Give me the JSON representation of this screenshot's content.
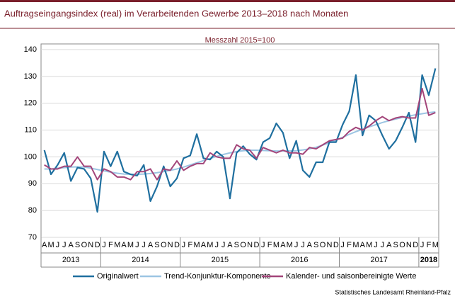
{
  "chart_data": {
    "type": "line",
    "title": "Auftragseingangsindex (real) im Verarbeitenden Gewerbe 2013–2018 nach Monaten",
    "subtitle": "Messzahl 2015=100",
    "source": "Statistisches Landesamt Rheinland-Pfalz",
    "categories": [
      "A",
      "M",
      "J",
      "J",
      "A",
      "S",
      "O",
      "N",
      "D",
      "J",
      "F",
      "M",
      "A",
      "M",
      "J",
      "J",
      "A",
      "S",
      "O",
      "N",
      "D",
      "J",
      "F",
      "M",
      "A",
      "M",
      "J",
      "J",
      "A",
      "S",
      "O",
      "N",
      "D",
      "J",
      "F",
      "M",
      "A",
      "M",
      "J",
      "J",
      "A",
      "S",
      "O",
      "N",
      "D",
      "J",
      "F",
      "M",
      "A",
      "M",
      "J",
      "J",
      "A",
      "S",
      "O",
      "N",
      "D",
      "J",
      "F",
      "M"
    ],
    "years": [
      "2013",
      "2014",
      "2015",
      "2016",
      "2017",
      "2018"
    ],
    "series": [
      {
        "name": "Originalwert",
        "color": "#1f6f9f",
        "width": 2.2,
        "values": [
          102.5,
          93.5,
          97,
          101.5,
          91,
          96,
          95.5,
          92,
          79.5,
          102,
          96.5,
          102,
          94.5,
          93.5,
          93,
          97,
          83.5,
          89,
          96.5,
          89,
          92,
          99.5,
          100.5,
          108.5,
          99.5,
          99,
          102,
          100,
          84.5,
          101.5,
          104,
          101,
          99,
          105.5,
          107,
          112.5,
          109,
          99.5,
          106,
          95,
          92.5,
          98,
          98,
          105.5,
          105.5,
          112,
          117,
          130.5,
          108,
          115.5,
          113.5,
          108,
          103,
          106,
          111,
          116.5,
          105.5,
          130.5,
          123,
          133
        ]
      },
      {
        "name": "Trend-Konjunktur-Komponente",
        "color": "#9cc5e3",
        "width": 2,
        "values": [
          95.5,
          95.5,
          95.8,
          96,
          96.2,
          96.3,
          96.2,
          95.8,
          95.3,
          94.8,
          94.3,
          93.9,
          93.6,
          93.5,
          93.5,
          93.6,
          93.8,
          94.1,
          94.5,
          95,
          95.5,
          96.2,
          97,
          97.8,
          98.6,
          99.4,
          100.2,
          100.9,
          101.5,
          102,
          102.3,
          102.5,
          102.5,
          102.4,
          102.3,
          102.2,
          102.2,
          102.2,
          102.3,
          102.6,
          103,
          103.6,
          104.4,
          105.3,
          106.3,
          107.3,
          108.4,
          109.4,
          110.3,
          111.2,
          112,
          112.8,
          113.5,
          114.1,
          114.7,
          115.2,
          115.7,
          116.1,
          116.5,
          116.8
        ]
      },
      {
        "name": "Kalender- und saisonbereinigte Werte",
        "color": "#a3457a",
        "width": 2,
        "values": [
          97,
          95.5,
          95.5,
          96.5,
          96.5,
          100,
          96.5,
          96.5,
          91.5,
          95.5,
          94.5,
          92.5,
          92.5,
          91.5,
          94.5,
          94.5,
          95.5,
          91.5,
          95.5,
          95,
          98.5,
          95,
          96.5,
          97.5,
          97.5,
          101.5,
          100,
          99.5,
          99.5,
          104.5,
          103,
          102.5,
          99.5,
          103.5,
          102.5,
          101.5,
          102.5,
          101.5,
          101.5,
          101,
          103.5,
          103,
          104.5,
          106,
          106.5,
          107,
          109.5,
          111,
          110,
          111.5,
          113.5,
          115,
          113.5,
          114.5,
          115,
          114.5,
          114.5,
          125.5,
          115.5,
          116.5
        ]
      }
    ],
    "ylim": [
      70,
      140
    ],
    "yticks": [
      70,
      80,
      90,
      100,
      110,
      120,
      130,
      140
    ],
    "grid": true
  }
}
